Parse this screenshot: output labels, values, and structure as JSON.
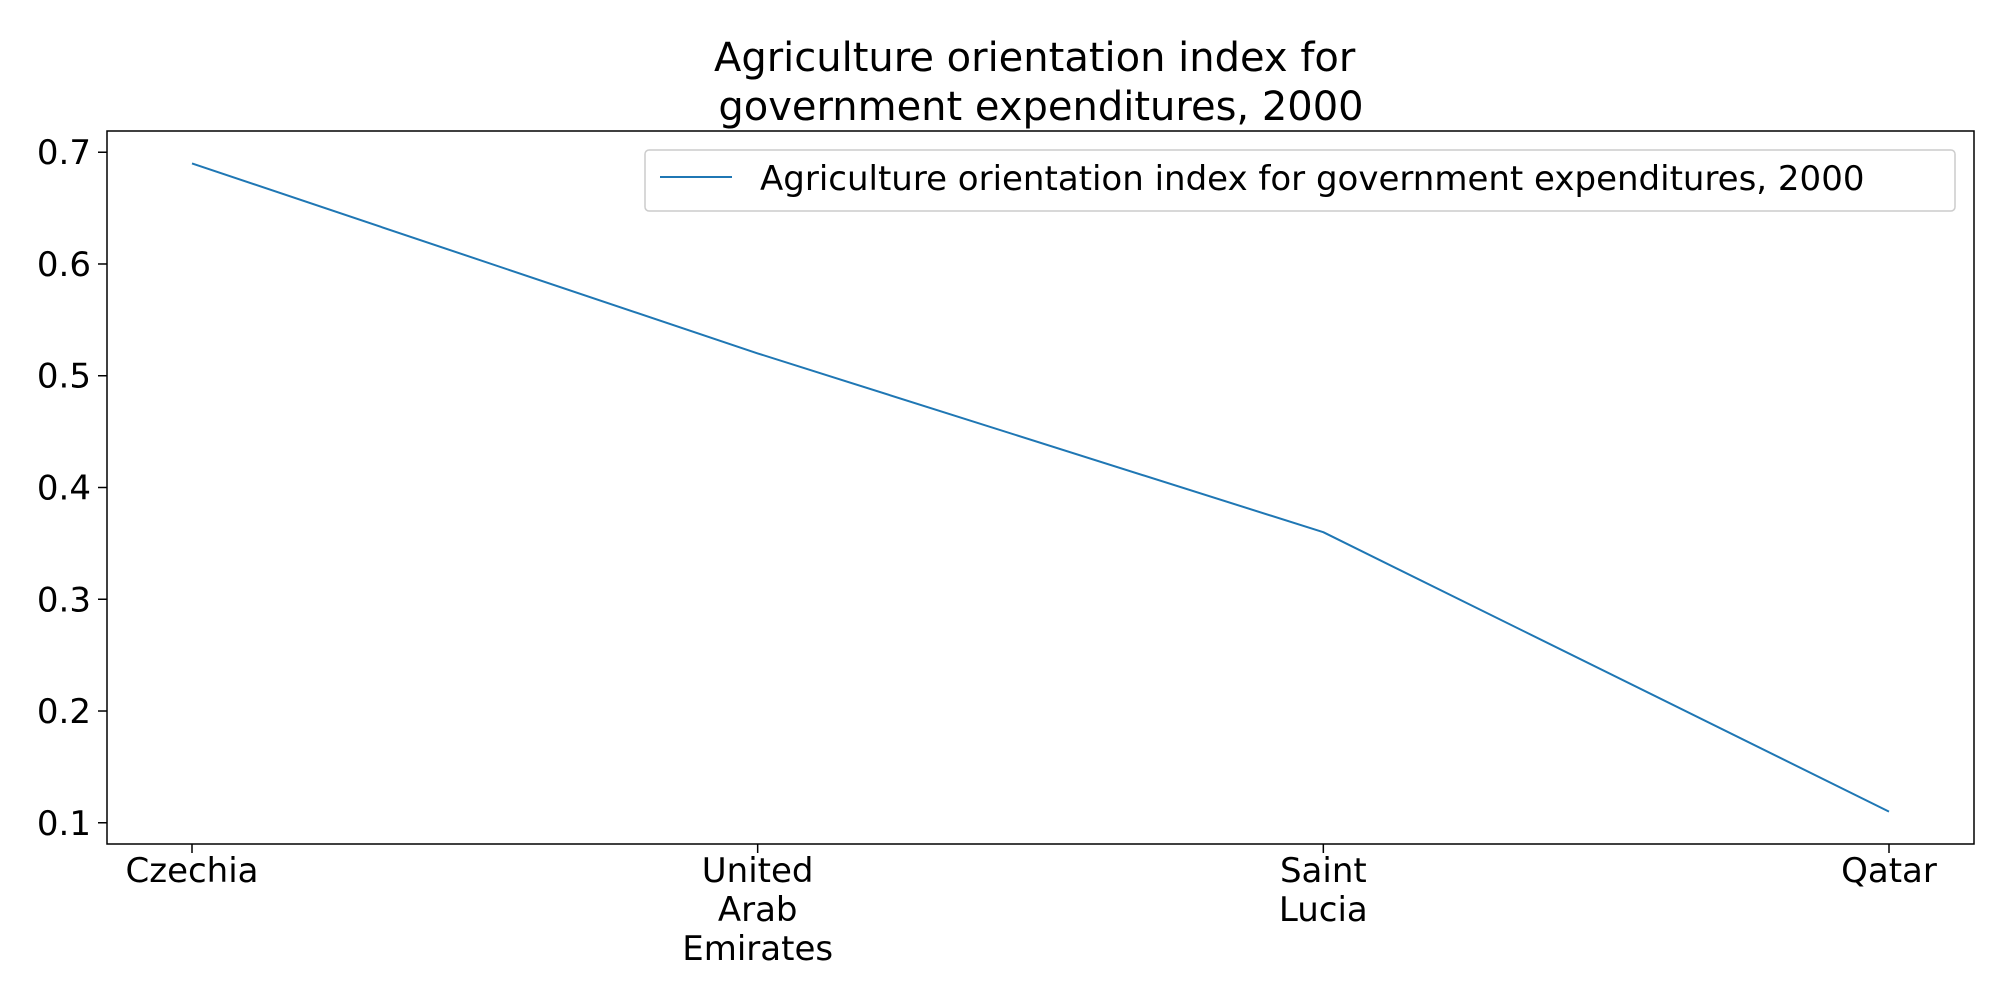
{
  "chart_data": {
    "type": "line",
    "title": [
      "Agriculture orientation index for",
      "government expenditures, 2000"
    ],
    "categories": [
      [
        "Czechia"
      ],
      [
        "United",
        "Arab",
        "Emirates"
      ],
      [
        "Saint",
        "Lucia"
      ],
      [
        "Qatar"
      ]
    ],
    "series": [
      {
        "name": "Agriculture orientation index for government expenditures, 2000",
        "values": [
          0.69,
          0.52,
          0.36,
          0.11
        ],
        "color": "#1f77b4"
      }
    ],
    "yticks": [
      0.1,
      0.2,
      0.3,
      0.4,
      0.5,
      0.6,
      0.7
    ],
    "ylim": [
      0.081,
      0.719
    ],
    "legend_position": "top-right",
    "grid": false
  }
}
